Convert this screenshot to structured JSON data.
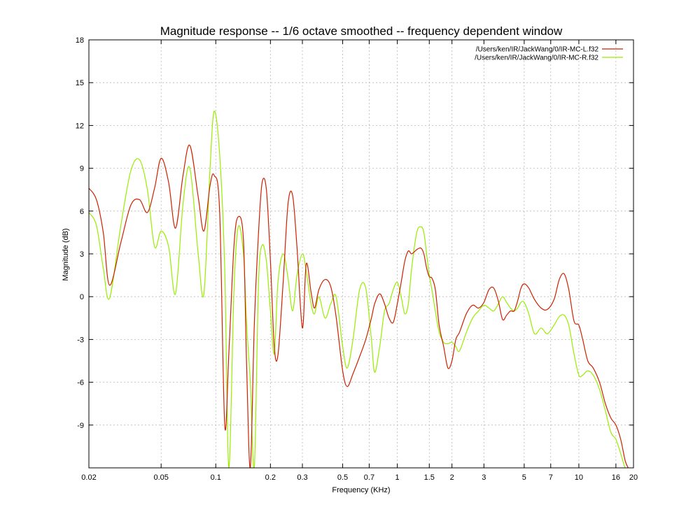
{
  "chart_data": {
    "type": "line",
    "title": "Magnitude response -- 1/6 octave smoothed -- frequency dependent window",
    "xlabel": "Frequency (KHz)",
    "ylabel": "Magnitude (dB)",
    "x_scale": "log",
    "xlim": [
      0.02,
      20
    ],
    "ylim": [
      -12,
      18
    ],
    "x_ticks": [
      0.02,
      0.05,
      0.1,
      0.2,
      0.3,
      0.5,
      0.7,
      1,
      1.5,
      2,
      3,
      5,
      7,
      10,
      16,
      20
    ],
    "x_tick_labels": [
      "0.02",
      "0.05",
      "0.1",
      "0.2",
      "0.3",
      "0.5",
      "0.7",
      "1",
      "1.5",
      "2",
      "3",
      "5",
      "7",
      "10",
      "16",
      "20"
    ],
    "y_ticks": [
      -9,
      -6,
      -3,
      0,
      3,
      6,
      9,
      12,
      15,
      18
    ],
    "y_tick_labels": [
      "-9",
      "-6",
      "-3",
      "0",
      "3",
      "6",
      "9",
      "12",
      "15",
      "18"
    ],
    "grid": true,
    "legend_position": "top-right",
    "series": [
      {
        "name": "/Users/ken/IR/JackWang/0/IR-MC-L.f32",
        "color": "#cc2200",
        "x": [
          0.02,
          0.022,
          0.024,
          0.026,
          0.03,
          0.034,
          0.038,
          0.042,
          0.046,
          0.05,
          0.055,
          0.06,
          0.066,
          0.072,
          0.08,
          0.086,
          0.093,
          0.098,
          0.105,
          0.112,
          0.118,
          0.126,
          0.133,
          0.142,
          0.148,
          0.155,
          0.163,
          0.172,
          0.18,
          0.19,
          0.2,
          0.21,
          0.22,
          0.235,
          0.25,
          0.265,
          0.28,
          0.3,
          0.315,
          0.335,
          0.35,
          0.37,
          0.4,
          0.43,
          0.46,
          0.5,
          0.53,
          0.57,
          0.62,
          0.67,
          0.72,
          0.75,
          0.8,
          0.85,
          0.9,
          0.95,
          1.0,
          1.05,
          1.1,
          1.15,
          1.2,
          1.28,
          1.35,
          1.4,
          1.45,
          1.5,
          1.55,
          1.62,
          1.7,
          1.8,
          1.9,
          2.0,
          2.1,
          2.2,
          2.4,
          2.6,
          2.8,
          3.0,
          3.2,
          3.4,
          3.6,
          3.8,
          4.0,
          4.2,
          4.4,
          4.6,
          4.8,
          5.0,
          5.3,
          5.7,
          6.2,
          6.7,
          7.3,
          7.8,
          8.3,
          8.8,
          9.4,
          10.0,
          10.5,
          11.2,
          12.0,
          13.0,
          14.0,
          15.0,
          16.0,
          17.0,
          18.0,
          18.7
        ],
        "y": [
          7.6,
          6.8,
          4.5,
          0.8,
          3.8,
          6.4,
          6.8,
          5.9,
          7.6,
          9.7,
          8.0,
          4.8,
          8.5,
          10.6,
          7.0,
          4.6,
          7.8,
          8.5,
          6.0,
          -9.0,
          -4.0,
          3.6,
          5.6,
          4.0,
          -5.0,
          -12.0,
          -2.0,
          4.5,
          8.0,
          7.5,
          2.5,
          -3.5,
          -4.1,
          1.0,
          6.5,
          7.1,
          3.5,
          -2.2,
          2.3,
          0.3,
          -0.8,
          0.5,
          1.2,
          0.7,
          -1.4,
          -5.2,
          -6.3,
          -5.4,
          -4.2,
          -3.0,
          -1.5,
          -0.5,
          0.2,
          -0.5,
          -1.5,
          -1.8,
          -0.5,
          1.0,
          2.5,
          3.2,
          3.0,
          3.3,
          3.4,
          3.0,
          2.0,
          1.4,
          1.3,
          0.5,
          -2.0,
          -3.5,
          -5.0,
          -4.5,
          -3.0,
          -2.5,
          -1.2,
          -0.6,
          -0.8,
          -0.4,
          0.5,
          0.6,
          -0.3,
          -1.6,
          -1.3,
          -1.0,
          -1.0,
          -0.3,
          0.6,
          0.9,
          0.6,
          -0.2,
          -0.8,
          -0.9,
          -0.2,
          1.2,
          1.6,
          0.5,
          -1.7,
          -2.0,
          -3.0,
          -4.5,
          -5.0,
          -6.0,
          -7.5,
          -8.5,
          -9.0,
          -10.0,
          -11.5,
          -12.0
        ]
      },
      {
        "name": "/Users/ken/IR/JackWang/0/IR-MC-R.f32",
        "color": "#99ee00",
        "x": [
          0.02,
          0.022,
          0.024,
          0.026,
          0.03,
          0.034,
          0.038,
          0.042,
          0.046,
          0.05,
          0.055,
          0.06,
          0.066,
          0.072,
          0.08,
          0.086,
          0.093,
          0.098,
          0.105,
          0.112,
          0.118,
          0.126,
          0.133,
          0.142,
          0.148,
          0.155,
          0.163,
          0.172,
          0.18,
          0.19,
          0.2,
          0.21,
          0.22,
          0.235,
          0.25,
          0.265,
          0.28,
          0.3,
          0.315,
          0.335,
          0.35,
          0.37,
          0.4,
          0.43,
          0.46,
          0.5,
          0.53,
          0.57,
          0.62,
          0.67,
          0.72,
          0.75,
          0.8,
          0.85,
          0.9,
          0.95,
          1.0,
          1.05,
          1.1,
          1.15,
          1.2,
          1.28,
          1.35,
          1.4,
          1.45,
          1.5,
          1.55,
          1.62,
          1.7,
          1.8,
          1.9,
          2.0,
          2.1,
          2.2,
          2.4,
          2.6,
          2.8,
          3.0,
          3.2,
          3.4,
          3.6,
          3.8,
          4.0,
          4.2,
          4.4,
          4.6,
          4.8,
          5.0,
          5.3,
          5.7,
          6.2,
          6.7,
          7.3,
          7.8,
          8.3,
          8.8,
          9.4,
          10.0,
          10.5,
          11.2,
          12.0,
          13.0,
          14.0,
          15.0,
          16.0,
          17.0,
          18.0,
          18.7
        ],
        "y": [
          5.9,
          5.0,
          2.0,
          -0.1,
          5.0,
          8.8,
          9.6,
          7.5,
          3.5,
          4.6,
          3.5,
          0.2,
          6.5,
          9.0,
          3.0,
          0.2,
          9.0,
          13.0,
          10.0,
          2.0,
          -12.0,
          0.5,
          4.9,
          3.0,
          -2.0,
          -6.0,
          -12.0,
          1.0,
          3.6,
          2.5,
          -1.0,
          -4.0,
          1.0,
          3.0,
          1.3,
          -1.0,
          1.5,
          3.0,
          1.8,
          -0.5,
          -1.2,
          0.0,
          -1.5,
          -0.5,
          0.0,
          -3.5,
          -5.0,
          -3.0,
          0.5,
          0.6,
          -3.0,
          -5.3,
          -3.5,
          -1.0,
          -0.5,
          0.5,
          1.0,
          0.0,
          -1.2,
          -0.5,
          2.0,
          4.5,
          4.9,
          4.5,
          3.0,
          1.5,
          0.5,
          -1.0,
          -2.5,
          -3.2,
          -3.3,
          -3.2,
          -3.5,
          -3.8,
          -2.5,
          -1.5,
          -1.0,
          -0.6,
          -0.8,
          -1.0,
          -0.5,
          0.0,
          -0.4,
          -0.8,
          -1.0,
          -0.8,
          -0.4,
          -0.4,
          -1.2,
          -2.6,
          -2.2,
          -2.6,
          -2.0,
          -1.4,
          -1.3,
          -2.0,
          -4.0,
          -5.5,
          -5.5,
          -5.2,
          -5.5,
          -6.5,
          -8.0,
          -9.5,
          -10.0,
          -11.0,
          -12.0,
          -12.0
        ]
      }
    ]
  }
}
